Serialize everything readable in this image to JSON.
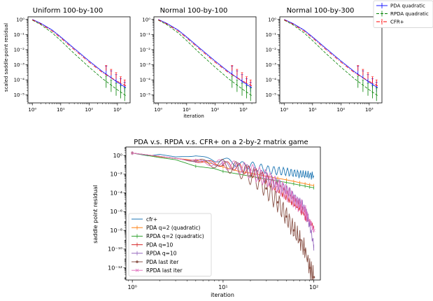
{
  "chart_data": [
    {
      "type": "line",
      "title": "Uniform 100-by-100",
      "xlabel": "",
      "ylabel": "scaled saddle-point residual",
      "xscale": "log",
      "yscale": "log",
      "xlim": [
        0.7,
        2800
      ],
      "ylim": [
        3e-06,
        1.5
      ],
      "xticks": [
        {
          "v": 1,
          "label": "10⁰"
        },
        {
          "v": 10,
          "label": "10¹"
        },
        {
          "v": 100,
          "label": "10²"
        },
        {
          "v": 1000,
          "label": "10³"
        }
      ],
      "yticks": [
        {
          "v": 1,
          "label": "10⁰"
        },
        {
          "v": 0.1,
          "label": "10⁻¹"
        },
        {
          "v": 0.01,
          "label": "10⁻²"
        },
        {
          "v": 0.001,
          "label": "10⁻³"
        },
        {
          "v": 0.0001,
          "label": "10⁻⁴"
        },
        {
          "v": 1e-05,
          "label": "10⁻⁵"
        }
      ],
      "series": [
        {
          "name": "PDA quadratic",
          "color": "#0000ff",
          "dash": "",
          "x": [
            1,
            2,
            5,
            10,
            30,
            100,
            300,
            1000,
            2000
          ],
          "y": [
            1,
            0.55,
            0.2,
            0.07,
            0.012,
            0.0018,
            0.00035,
            7e-05,
            3e-05
          ],
          "err_x": [
            400,
            600,
            900,
            1300,
            1800
          ],
          "err_lo": [
            0.00025,
            0.00012,
            6e-05,
            3e-05,
            1.6e-05
          ],
          "err_hi": [
            0.0008,
            0.0004,
            0.00022,
            0.00012,
            7e-05
          ]
        },
        {
          "name": "RPDA quadratic",
          "color": "#008000",
          "dash": "4,2",
          "x": [
            1,
            2,
            5,
            10,
            30,
            100,
            300,
            1000,
            2000
          ],
          "y": [
            0.9,
            0.45,
            0.13,
            0.04,
            0.0055,
            0.0007,
            0.00012,
            2.2e-05,
            9e-06
          ],
          "err_x": [
            400,
            600,
            900,
            1300,
            1800
          ],
          "err_lo": [
            3e-05,
            1.6e-05,
            9e-06,
            6e-06,
            4e-06
          ],
          "err_hi": [
            0.00018,
            0.0001,
            6e-05,
            4e-05,
            3e-05
          ]
        },
        {
          "name": "CFR+",
          "color": "#ff0000",
          "dash": "5,2,1,2",
          "x": [
            1,
            2,
            5,
            10,
            30,
            100,
            300,
            1000,
            2000
          ],
          "y": [
            0.95,
            0.5,
            0.17,
            0.06,
            0.01,
            0.0015,
            0.0003,
            8e-05,
            4e-05
          ],
          "err_x": [
            400,
            600,
            900,
            1300,
            1800
          ],
          "err_lo": [
            0.0004,
            0.0002,
            0.00012,
            6e-05,
            4e-05
          ],
          "err_hi": [
            0.0009,
            0.0005,
            0.0003,
            0.00016,
            0.0001
          ]
        }
      ]
    },
    {
      "type": "line",
      "title": "Normal 100-by-100",
      "xlabel": "iteration",
      "ylabel": "",
      "xscale": "log",
      "yscale": "log",
      "xlim": [
        0.7,
        2800
      ],
      "ylim": [
        3e-06,
        1.5
      ],
      "xticks": [
        {
          "v": 1,
          "label": "10⁰"
        },
        {
          "v": 10,
          "label": "10¹"
        },
        {
          "v": 100,
          "label": "10²"
        },
        {
          "v": 1000,
          "label": "10³"
        }
      ],
      "yticks": [
        {
          "v": 1,
          "label": "10⁰"
        },
        {
          "v": 0.1,
          "label": "10⁻¹"
        },
        {
          "v": 0.01,
          "label": "10⁻²"
        },
        {
          "v": 0.001,
          "label": "10⁻³"
        },
        {
          "v": 0.0001,
          "label": "10⁻⁴"
        },
        {
          "v": 1e-05,
          "label": "10⁻⁵"
        }
      ],
      "series": [
        {
          "name": "PDA quadratic",
          "color": "#0000ff",
          "dash": "",
          "x": [
            1,
            2,
            5,
            10,
            30,
            100,
            300,
            1000,
            2000
          ],
          "y": [
            1,
            0.55,
            0.2,
            0.07,
            0.012,
            0.0018,
            0.00035,
            7e-05,
            3e-05
          ],
          "err_x": [
            400,
            600,
            900,
            1300,
            1800
          ],
          "err_lo": [
            0.00025,
            0.00012,
            6e-05,
            3e-05,
            1.6e-05
          ],
          "err_hi": [
            0.0008,
            0.0004,
            0.00022,
            0.00012,
            7e-05
          ]
        },
        {
          "name": "RPDA quadratic",
          "color": "#008000",
          "dash": "4,2",
          "x": [
            1,
            2,
            5,
            10,
            30,
            100,
            300,
            1000,
            2000
          ],
          "y": [
            0.9,
            0.45,
            0.13,
            0.04,
            0.0055,
            0.0007,
            0.00012,
            2.2e-05,
            9e-06
          ],
          "err_x": [
            400,
            600,
            900,
            1300,
            1800
          ],
          "err_lo": [
            3e-05,
            1.6e-05,
            9e-06,
            6e-06,
            4e-06
          ],
          "err_hi": [
            0.00018,
            0.0001,
            6e-05,
            4e-05,
            3e-05
          ]
        },
        {
          "name": "CFR+",
          "color": "#ff0000",
          "dash": "5,2,1,2",
          "x": [
            1,
            2,
            5,
            10,
            30,
            100,
            300,
            1000,
            2000
          ],
          "y": [
            0.95,
            0.5,
            0.17,
            0.06,
            0.01,
            0.0015,
            0.0003,
            8e-05,
            4e-05
          ],
          "err_x": [
            400,
            600,
            900,
            1300,
            1800
          ],
          "err_lo": [
            0.0004,
            0.0002,
            0.00012,
            6e-05,
            4e-05
          ],
          "err_hi": [
            0.0009,
            0.0005,
            0.0003,
            0.00016,
            0.0001
          ]
        }
      ]
    },
    {
      "type": "line",
      "title": "Normal 100-by-300",
      "xlabel": "",
      "ylabel": "",
      "xscale": "log",
      "yscale": "log",
      "xlim": [
        0.7,
        2800
      ],
      "ylim": [
        3e-06,
        1.5
      ],
      "xticks": [
        {
          "v": 1,
          "label": "10⁰"
        },
        {
          "v": 10,
          "label": "10¹"
        },
        {
          "v": 100,
          "label": "10²"
        },
        {
          "v": 1000,
          "label": "10³"
        }
      ],
      "yticks": [
        {
          "v": 1,
          "label": "10⁰"
        },
        {
          "v": 0.1,
          "label": "10⁻¹"
        },
        {
          "v": 0.01,
          "label": "10⁻²"
        },
        {
          "v": 0.001,
          "label": "10⁻³"
        },
        {
          "v": 0.0001,
          "label": "10⁻⁴"
        },
        {
          "v": 1e-05,
          "label": "10⁻⁵"
        }
      ],
      "legend_entries": [
        "PDA quadratic",
        "RPDA quadratic",
        "CFR+"
      ],
      "series": [
        {
          "name": "PDA quadratic",
          "color": "#0000ff",
          "dash": "",
          "x": [
            1,
            2,
            5,
            10,
            30,
            100,
            300,
            1000,
            2000
          ],
          "y": [
            1,
            0.55,
            0.2,
            0.07,
            0.012,
            0.0018,
            0.00035,
            7e-05,
            3e-05
          ],
          "err_x": [
            400,
            600,
            900,
            1300,
            1800
          ],
          "err_lo": [
            0.00025,
            0.00012,
            6e-05,
            3e-05,
            1.6e-05
          ],
          "err_hi": [
            0.0008,
            0.0004,
            0.00022,
            0.00012,
            7e-05
          ]
        },
        {
          "name": "RPDA quadratic",
          "color": "#008000",
          "dash": "4,2",
          "x": [
            1,
            2,
            5,
            10,
            30,
            100,
            300,
            1000,
            2000
          ],
          "y": [
            0.9,
            0.45,
            0.13,
            0.04,
            0.0055,
            0.0007,
            0.00012,
            2.2e-05,
            9e-06
          ],
          "err_x": [
            400,
            600,
            900,
            1300,
            1800
          ],
          "err_lo": [
            3e-05,
            1.6e-05,
            9e-06,
            6e-06,
            4e-06
          ],
          "err_hi": [
            0.00018,
            0.0001,
            6e-05,
            4e-05,
            3e-05
          ]
        },
        {
          "name": "CFR+",
          "color": "#ff0000",
          "dash": "5,2,1,2",
          "x": [
            1,
            2,
            5,
            10,
            30,
            100,
            300,
            1000,
            2000
          ],
          "y": [
            0.95,
            0.5,
            0.17,
            0.06,
            0.01,
            0.0015,
            0.0003,
            8e-05,
            4e-05
          ],
          "err_x": [
            400,
            600,
            900,
            1300,
            1800
          ],
          "err_lo": [
            0.0004,
            0.0002,
            0.00012,
            6e-05,
            4e-05
          ],
          "err_hi": [
            0.0009,
            0.0005,
            0.0003,
            0.00016,
            0.0001
          ]
        }
      ]
    },
    {
      "type": "line",
      "title": "PDA v.s. RPDA v.s. CFR+ on a 2-by-2 matrix game",
      "xlabel": "iteration",
      "ylabel": "saddle point residual",
      "xscale": "log",
      "yscale": "log",
      "xlim": [
        0.85,
        118
      ],
      "ylim": [
        5e-14,
        8
      ],
      "xticks": [
        {
          "v": 1,
          "label": "10⁰"
        },
        {
          "v": 10,
          "label": "10¹"
        },
        {
          "v": 100,
          "label": "10²"
        }
      ],
      "yticks": [
        {
          "v": 1,
          "label": "10⁰"
        },
        {
          "v": 0.01,
          "label": "10⁻²"
        },
        {
          "v": 0.0001,
          "label": "10⁻⁴"
        },
        {
          "v": 1e-06,
          "label": "10⁻⁶"
        },
        {
          "v": 1e-08,
          "label": "10⁻⁸"
        },
        {
          "v": 1e-10,
          "label": "10⁻¹⁰"
        },
        {
          "v": 1e-12,
          "label": "10⁻¹²"
        }
      ],
      "legend_entries": [
        "cfr+",
        "PDA q=2 (quadratic)",
        "RPDA q=2 (quadratic)",
        "PDA q=10",
        "RPDA q=10",
        "PDA last iter",
        "RPDA last iter"
      ],
      "series": [
        {
          "name": "cfr+",
          "color": "#1f77b4",
          "marker": "",
          "x": [
            1,
            1.5,
            2,
            3,
            5,
            8,
            10,
            15,
            20,
            30,
            50,
            70,
            100
          ],
          "y": [
            1.8,
            0.9,
            1.3,
            0.7,
            0.9,
            0.3,
            0.4,
            0.1,
            0.09,
            0.03,
            0.018,
            0.01,
            0.007
          ],
          "wiggle": 0.45,
          "period": 0.05
        },
        {
          "name": "PDA q=2 (quadratic)",
          "color": "#ff7f0e",
          "marker": "|",
          "x": [
            1,
            2,
            3,
            5,
            8,
            10,
            15,
            20,
            30,
            50,
            100
          ],
          "y": [
            1.8,
            0.7,
            0.5,
            0.3,
            0.12,
            0.06,
            0.02,
            0.013,
            0.006,
            0.0025,
            0.0006
          ],
          "wiggle": 0,
          "period": 0.05
        },
        {
          "name": "RPDA q=2 (quadratic)",
          "color": "#2ca02c",
          "marker": "|",
          "x": [
            1,
            2,
            3,
            5,
            8,
            10,
            15,
            20,
            30,
            50,
            100
          ],
          "y": [
            1.8,
            0.6,
            0.35,
            0.07,
            0.04,
            0.02,
            0.01,
            0.006,
            0.003,
            0.0013,
            0.00035
          ],
          "wiggle": 0,
          "period": 0.05
        },
        {
          "name": "PDA q=10",
          "color": "#d62728",
          "marker": "|",
          "x": [
            1,
            2,
            5,
            10,
            15,
            20,
            30,
            40,
            50,
            60,
            70,
            80,
            90,
            100
          ],
          "y": [
            1.8,
            0.8,
            0.25,
            0.12,
            0.05,
            0.02,
            0.003,
            0.0004,
            6e-05,
            1e-05,
            3e-06,
            5e-07,
            1e-07,
            2e-08
          ],
          "wiggle": 0.6,
          "period": 0.04
        },
        {
          "name": "RPDA q=10",
          "color": "#9467bd",
          "marker": "|",
          "x": [
            1,
            2,
            5,
            10,
            15,
            20,
            30,
            40,
            50,
            60,
            70,
            80,
            90,
            100
          ],
          "y": [
            1.8,
            0.8,
            0.25,
            0.12,
            0.06,
            0.025,
            0.004,
            0.0008,
            0.0002,
            4e-05,
            1e-05,
            2e-06,
            4e-08,
            2e-10
          ],
          "wiggle": 0.6,
          "period": 0.04
        },
        {
          "name": "PDA last iter",
          "color": "#8c564b",
          "marker": "o",
          "x": [
            1,
            2,
            5,
            10,
            15,
            20,
            25,
            30,
            40,
            50,
            60,
            70,
            80,
            90,
            100
          ],
          "y": [
            1.8,
            0.8,
            0.25,
            0.1,
            0.03,
            0.007,
            0.002,
            0.0003,
            1e-05,
            3e-07,
            1e-08,
            1e-09,
            8e-11,
            1e-12,
            1e-13
          ],
          "wiggle": 1.1,
          "period": 0.04
        },
        {
          "name": "RPDA last iter",
          "color": "#e377c2",
          "marker": "x",
          "x": [
            1,
            2,
            5,
            10,
            15,
            20,
            25,
            30,
            40,
            50,
            60,
            70,
            80,
            90,
            100
          ],
          "y": [
            1.8,
            0.8,
            0.25,
            0.12,
            0.05,
            0.02,
            0.008,
            0.004,
            0.0006,
            0.0001,
            2e-05,
            5e-06,
            8e-07,
            1e-07,
            1e-08
          ],
          "wiggle": 0.9,
          "period": 0.04
        }
      ]
    }
  ]
}
